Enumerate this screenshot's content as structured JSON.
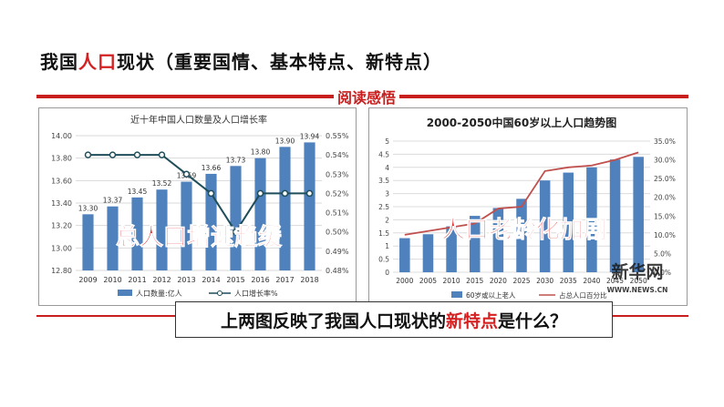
{
  "page": {
    "title_pre": "我国",
    "title_hl": "人口",
    "title_post": "现状（重要国情、基本特点、新特点）",
    "badge": "阅读感悟",
    "question_pre": "上两图反映了我国人口现状的",
    "question_hl": "新特点",
    "question_post": "是什么？",
    "overlay_left": "总人口增速趋缓",
    "overlay_right": "人口老龄化加剧",
    "watermark_cn": "新华网",
    "watermark_url": "WWW.NEWS.CN",
    "colors": {
      "accent": "#c81e1e",
      "bar": "#4f81bd",
      "line_dark": "#1f4e5a",
      "line_red": "#c0504d"
    }
  },
  "chart_data": [
    {
      "type": "bar",
      "title": "近十年中国人口数量及人口增长率",
      "categories": [
        "2009",
        "2010",
        "2011",
        "2012",
        "2013",
        "2014",
        "2015",
        "2016",
        "2017",
        "2018"
      ],
      "series": [
        {
          "name": "人口数量:亿人",
          "values": [
            13.3,
            13.37,
            13.45,
            13.52,
            13.59,
            13.66,
            13.73,
            13.8,
            13.9,
            13.94
          ]
        },
        {
          "name": "人口增长率%",
          "type": "line",
          "axis": "right",
          "values": [
            0.54,
            0.54,
            0.54,
            0.54,
            0.53,
            0.52,
            0.5,
            0.52,
            0.52,
            0.52
          ]
        }
      ],
      "data_labels": [
        "13.30",
        "13.37",
        "13.45",
        "13.52",
        "13.59",
        "13.66",
        "13.73",
        "13.80",
        "13.90",
        "13.94"
      ],
      "ylim": [
        12.8,
        14.0
      ],
      "yticks": [
        "14.00",
        "13.80",
        "13.60",
        "13.40",
        "13.20",
        "13.00",
        "12.80"
      ],
      "y2lim": [
        0.48,
        0.55
      ],
      "y2ticks": [
        "0.55%",
        "0.54%",
        "0.53%",
        "0.52%",
        "0.51%",
        "0.50%",
        "0.49%",
        "0.48%"
      ],
      "grid": true,
      "legend": "bottom"
    },
    {
      "type": "bar",
      "title": "2000-2050中国60岁以上人口趋势图",
      "categories": [
        "2000",
        "2005",
        "2010",
        "2015",
        "2020",
        "2025",
        "2030",
        "2035",
        "2040",
        "2045",
        "2050"
      ],
      "xticks": [
        "2000",
        "2005",
        "2010",
        "2015",
        "2020",
        "2025",
        "2030",
        "2035",
        "2040",
        "2045",
        "2050"
      ],
      "series": [
        {
          "name": "60岁或以上老人",
          "values": [
            1.3,
            1.45,
            1.75,
            2.15,
            2.45,
            2.8,
            3.5,
            3.8,
            4.0,
            4.3,
            4.4
          ]
        },
        {
          "name": "占总人口百分比",
          "type": "line",
          "axis": "right",
          "values": [
            10,
            11,
            12,
            13,
            17,
            17.5,
            27,
            28,
            28.5,
            30,
            32
          ]
        }
      ],
      "ylim": [
        0,
        5
      ],
      "yticks": [
        "5",
        "4.5",
        "4",
        "3.5",
        "3",
        "2.5",
        "2",
        "1.5",
        "1",
        "0.5",
        "0"
      ],
      "y2lim": [
        0,
        35
      ],
      "y2ticks": [
        "35.0%",
        "30.0%",
        "25.0%",
        "20.0%",
        "15.0%",
        "10.0%",
        "5.0%",
        "0.0%"
      ],
      "grid": true,
      "legend": "bottom"
    }
  ]
}
